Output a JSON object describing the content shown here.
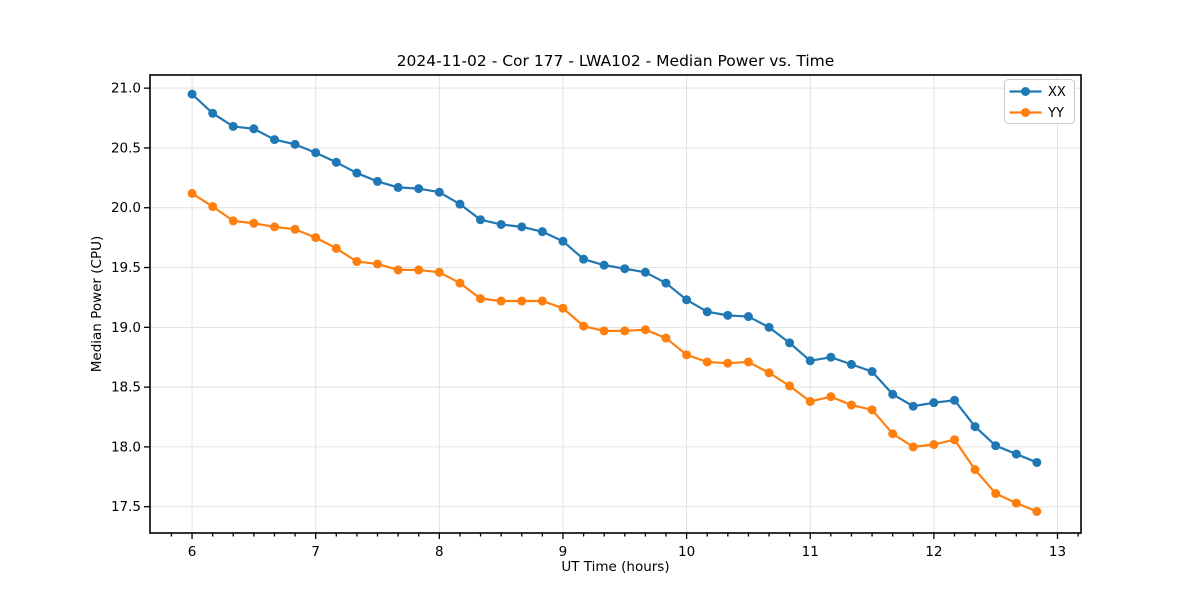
{
  "page": {
    "background": "#ffffff"
  },
  "chart_data": {
    "type": "line",
    "title": "2024-11-02 - Cor 177 - LWA102 - Median Power vs. Time",
    "xlabel": "UT Time (hours)",
    "ylabel": "Median Power (CPU)",
    "xlim": [
      5.66,
      13.19
    ],
    "ylim": [
      17.28,
      21.11
    ],
    "xticks": [
      6,
      7,
      8,
      9,
      10,
      11,
      12,
      13
    ],
    "yticks": [
      17.5,
      18.0,
      18.5,
      19.0,
      19.5,
      20.0,
      20.5,
      21.0
    ],
    "minor_xtick_step": 0.16667,
    "grid": true,
    "grid_color": "#e2e2e2",
    "legend_position": "upper right",
    "marker": "o",
    "x": [
      6.0,
      6.167,
      6.333,
      6.5,
      6.667,
      6.833,
      7.0,
      7.167,
      7.333,
      7.5,
      7.667,
      7.833,
      8.0,
      8.167,
      8.333,
      8.5,
      8.667,
      8.833,
      9.0,
      9.167,
      9.333,
      9.5,
      9.667,
      9.833,
      10.0,
      10.167,
      10.333,
      10.5,
      10.667,
      10.833,
      11.0,
      11.167,
      11.333,
      11.5,
      11.667,
      11.833,
      12.0,
      12.167,
      12.333,
      12.5,
      12.667,
      12.833
    ],
    "series": [
      {
        "name": "XX",
        "color": "#1f77b4",
        "values": [
          20.95,
          20.79,
          20.68,
          20.66,
          20.57,
          20.53,
          20.46,
          20.38,
          20.29,
          20.22,
          20.17,
          20.16,
          20.13,
          20.03,
          19.9,
          19.86,
          19.84,
          19.8,
          19.72,
          19.57,
          19.52,
          19.49,
          19.46,
          19.37,
          19.23,
          19.13,
          19.1,
          19.09,
          19.0,
          18.87,
          18.72,
          18.75,
          18.69,
          18.63,
          18.44,
          18.34,
          18.37,
          18.39,
          18.17,
          18.01,
          17.94,
          17.87
        ]
      },
      {
        "name": "YY",
        "color": "#ff7f0e",
        "values": [
          20.12,
          20.01,
          19.89,
          19.87,
          19.84,
          19.82,
          19.75,
          19.66,
          19.55,
          19.53,
          19.48,
          19.48,
          19.46,
          19.37,
          19.24,
          19.22,
          19.22,
          19.22,
          19.16,
          19.01,
          18.97,
          18.97,
          18.98,
          18.91,
          18.77,
          18.71,
          18.7,
          18.71,
          18.62,
          18.51,
          18.38,
          18.42,
          18.35,
          18.31,
          18.11,
          18.0,
          18.02,
          18.06,
          17.81,
          17.61,
          17.53,
          17.46
        ]
      }
    ]
  }
}
